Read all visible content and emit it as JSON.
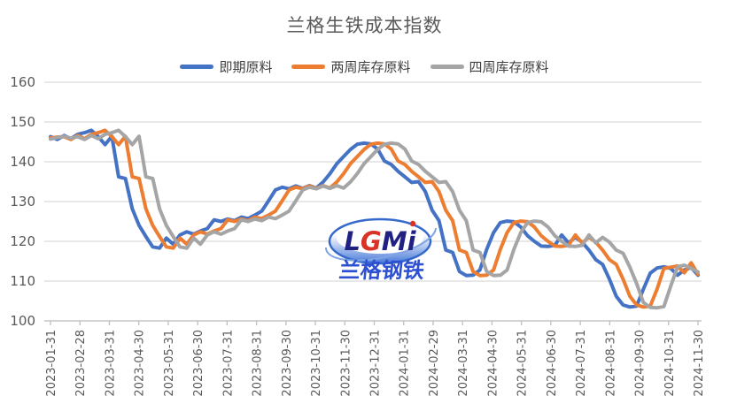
{
  "title": "兰格生铁成本指数",
  "watermark": {
    "letters": [
      "L",
      "G",
      "M",
      "i"
    ],
    "letter_colors": [
      "#16167e",
      "#d8281c",
      "#16167e",
      "#16167e"
    ],
    "subtext": "兰格钢铁",
    "subtext_color": "#2247d0",
    "ellipse_stroke": "#2b62c9"
  },
  "axis": {
    "label_color": "#595959",
    "grid_color": "#d9d9d9",
    "axis_line_color": "#bfbfbf"
  },
  "chart_data": {
    "type": "line",
    "title": "兰格生铁成本指数",
    "xlabel": "",
    "ylabel": "",
    "ylim": [
      100,
      160
    ],
    "y_ticks": [
      100,
      110,
      120,
      130,
      140,
      150,
      160
    ],
    "grid": "horizontal",
    "legend_position": "top",
    "x_frequency": "weekly",
    "x_labels_monthly": [
      "2023-01-31",
      "2023-02-28",
      "2023-03-31",
      "2023-04-30",
      "2023-05-31",
      "2023-06-30",
      "2023-07-31",
      "2023-08-31",
      "2023-09-30",
      "2023-10-31",
      "2023-11-30",
      "2023-12-31",
      "2024-01-31",
      "2024-02-29",
      "2024-03-31",
      "2024-04-30",
      "2024-05-31",
      "2024-06-30",
      "2024-07-31",
      "2024-08-31",
      "2024-09-30",
      "2024-10-31",
      "2024-11-30"
    ],
    "series": [
      {
        "name": "即期原料",
        "color": "#4472c4",
        "values": [
          146.3,
          145.6,
          146.6,
          145.8,
          146.9,
          147.3,
          147.9,
          146.3,
          144.3,
          146.4,
          136.2,
          135.8,
          128.2,
          124.0,
          121.2,
          118.6,
          118.3,
          120.8,
          119.3,
          121.6,
          122.4,
          121.8,
          122.6,
          123.2,
          125.4,
          125.0,
          125.6,
          125.2,
          126.1,
          125.7,
          126.6,
          127.6,
          130.2,
          132.9,
          133.6,
          133.2,
          133.9,
          133.3,
          134.0,
          133.4,
          134.9,
          137.0,
          139.5,
          141.3,
          143.1,
          144.4,
          144.7,
          144.5,
          143.2,
          140.2,
          139.3,
          137.6,
          136.2,
          134.8,
          135.0,
          132.5,
          127.8,
          125.2,
          117.8,
          117.2,
          112.4,
          111.4,
          111.5,
          112.8,
          118.0,
          122.2,
          124.7,
          125.1,
          124.9,
          123.6,
          121.4,
          120.0,
          118.8,
          118.7,
          119.0,
          121.6,
          119.6,
          121.0,
          119.8,
          117.8,
          115.4,
          114.2,
          110.5,
          106.2,
          104.0,
          103.5,
          103.7,
          108.0,
          112.0,
          113.3,
          113.6,
          113.2,
          111.5,
          112.8,
          113.4,
          111.5
        ]
      },
      {
        "name": "两周库存原料",
        "color": "#ed7d31",
        "values": [
          146.0,
          146.2,
          146.3,
          145.6,
          146.6,
          145.8,
          146.9,
          147.3,
          147.9,
          146.3,
          144.3,
          146.4,
          136.2,
          135.8,
          128.2,
          124.0,
          121.2,
          118.6,
          118.3,
          120.8,
          119.3,
          121.6,
          122.4,
          121.8,
          122.6,
          123.2,
          125.4,
          125.0,
          125.6,
          125.2,
          126.1,
          125.7,
          126.6,
          127.6,
          130.2,
          132.9,
          133.6,
          133.2,
          133.9,
          133.3,
          134.0,
          133.4,
          134.9,
          137.0,
          139.5,
          141.3,
          143.1,
          144.4,
          144.7,
          144.5,
          143.2,
          140.2,
          139.3,
          137.6,
          136.2,
          134.8,
          135.0,
          132.5,
          127.8,
          125.2,
          117.8,
          117.2,
          112.4,
          111.4,
          111.5,
          112.8,
          118.0,
          122.2,
          124.7,
          125.1,
          124.9,
          123.6,
          121.4,
          120.0,
          118.8,
          118.7,
          119.0,
          121.6,
          119.6,
          121.0,
          119.8,
          117.8,
          115.4,
          114.2,
          110.5,
          106.2,
          104.0,
          103.5,
          103.7,
          108.0,
          113.2,
          113.5,
          113.8,
          112.1,
          114.6,
          111.7
        ]
      },
      {
        "name": "四周库存原料",
        "color": "#a5a5a5",
        "values": [
          145.7,
          146.1,
          146.4,
          145.9,
          146.3,
          145.6,
          146.6,
          145.8,
          146.9,
          147.3,
          147.9,
          146.3,
          144.3,
          146.4,
          136.2,
          135.8,
          128.2,
          124.0,
          121.2,
          118.6,
          118.3,
          120.8,
          119.3,
          121.6,
          122.4,
          121.8,
          122.6,
          123.2,
          125.4,
          125.0,
          125.6,
          125.2,
          126.1,
          125.7,
          126.6,
          127.6,
          130.2,
          132.9,
          133.6,
          133.2,
          133.9,
          133.3,
          134.0,
          133.4,
          134.9,
          137.0,
          139.5,
          141.3,
          143.1,
          144.4,
          144.7,
          144.5,
          143.2,
          140.2,
          139.3,
          137.6,
          136.2,
          134.8,
          135.0,
          132.5,
          127.8,
          125.2,
          117.8,
          117.2,
          112.4,
          111.4,
          111.5,
          112.8,
          118.0,
          122.2,
          124.7,
          125.1,
          124.9,
          123.6,
          121.4,
          120.0,
          118.8,
          118.7,
          119.0,
          121.6,
          119.6,
          121.0,
          119.8,
          117.8,
          117.0,
          113.5,
          109.4,
          104.6,
          103.4,
          103.3,
          103.6,
          108.7,
          113.6,
          114.0,
          113.2,
          112.3
        ]
      }
    ]
  }
}
